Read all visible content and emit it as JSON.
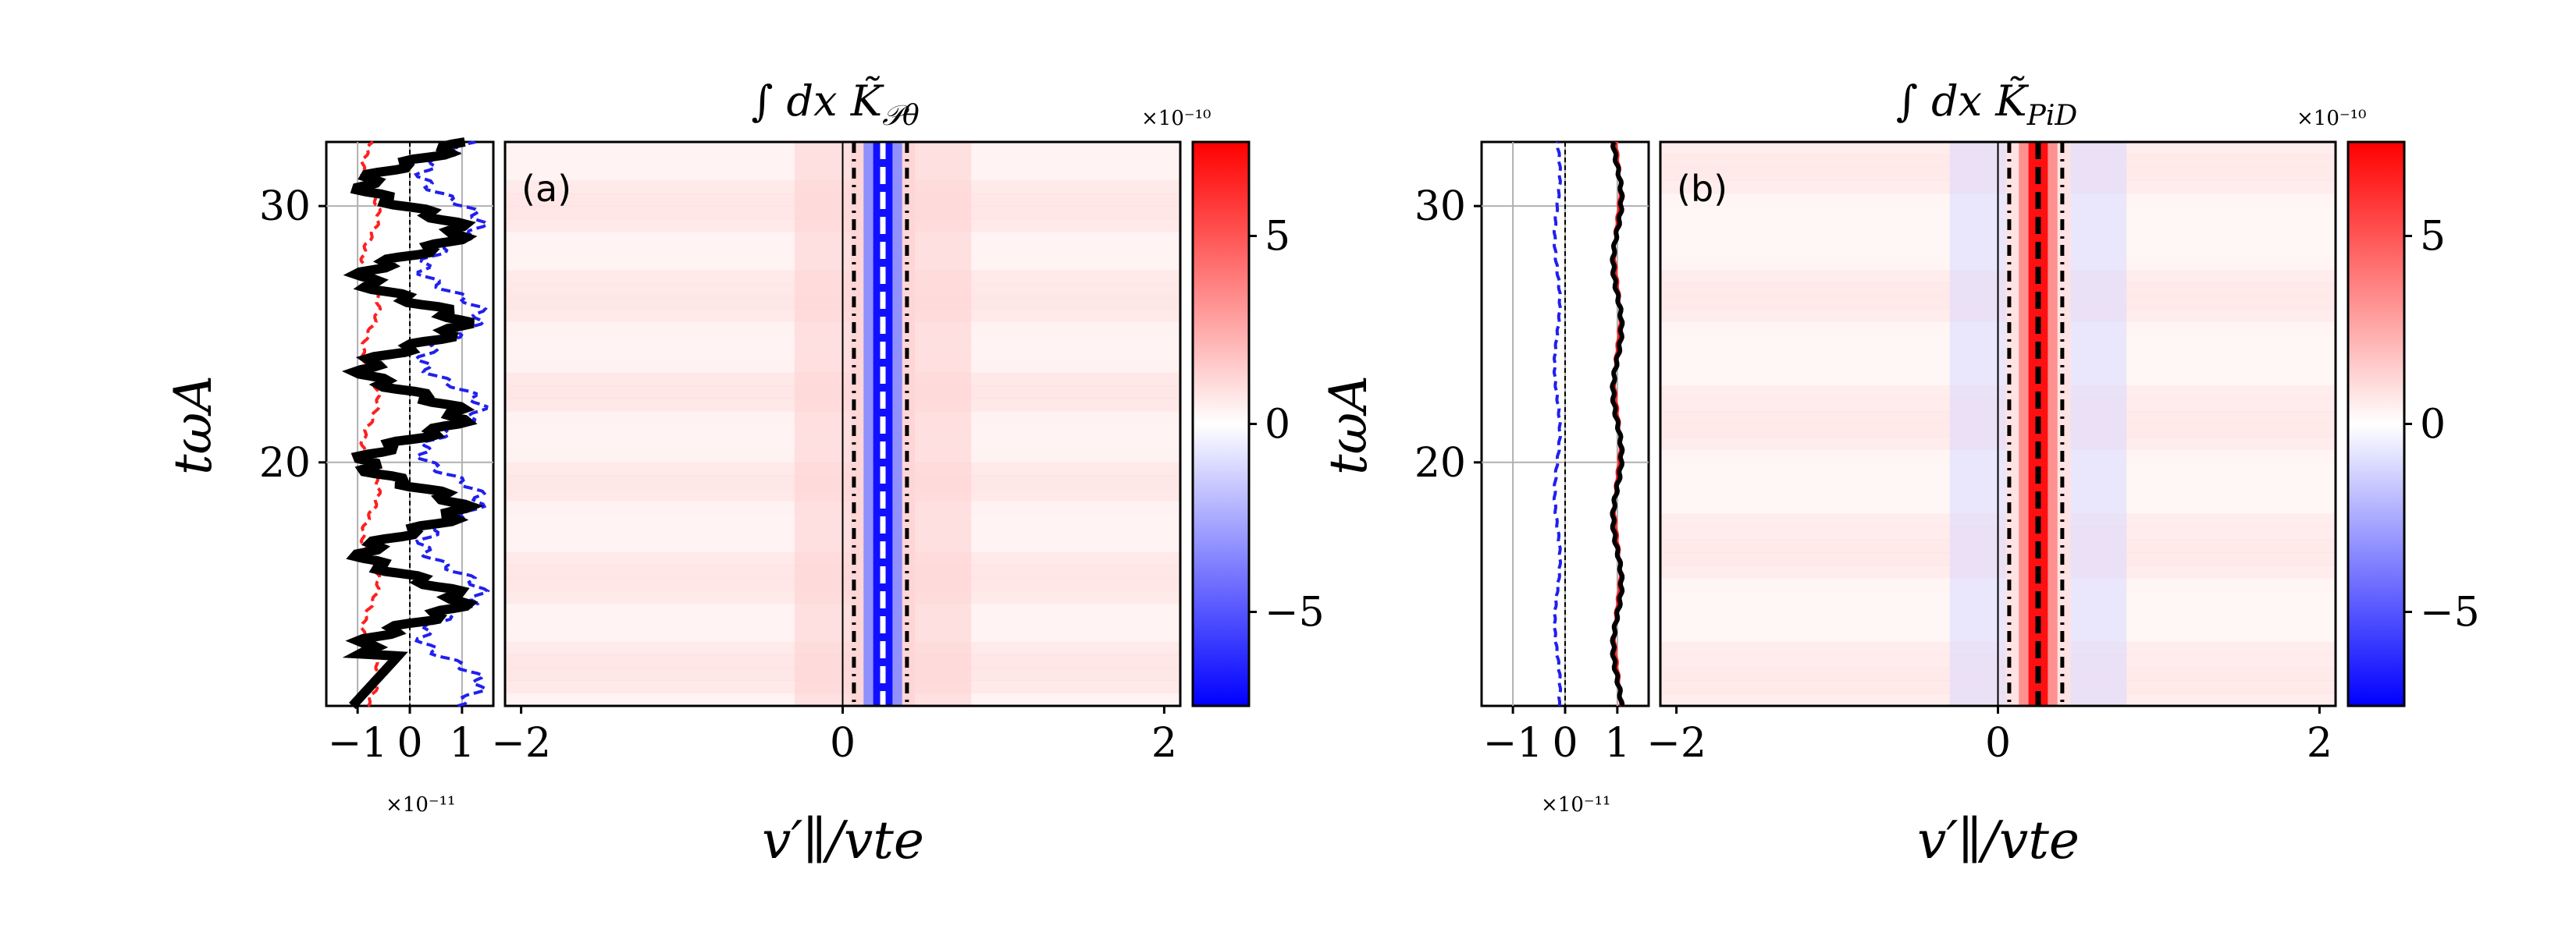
{
  "chart_data": [
    {
      "panel": "a",
      "type": "heatmap",
      "panel_label": "(a)",
      "title": "∫ dx K̃_Pθ",
      "title_parts": {
        "integral": "∫ dx ",
        "symbol": "K̃",
        "subscript": "𝒫θ"
      },
      "xlabel": "v′∥/vte",
      "ylabel": "tωA",
      "xlim": [
        -2.1,
        2.1
      ],
      "ylim": [
        10.5,
        32.5
      ],
      "xticks": [
        "−2",
        "0",
        "2"
      ],
      "xtick_values": [
        -2,
        0,
        2
      ],
      "yticks": [
        "20",
        "30"
      ],
      "ytick_values": [
        20,
        30
      ],
      "colorbar": {
        "range": [
          -7.5,
          7.5
        ],
        "ticks": [
          "5",
          "0",
          "−5"
        ],
        "tick_values": [
          5,
          0,
          -5
        ],
        "scale_label": "×10⁻¹⁰"
      },
      "dominant_band": {
        "center": 0.25,
        "sign": "negative"
      },
      "vertical_lines": [
        {
          "x": 0.07,
          "style": "dashdot"
        },
        {
          "x": 0.25,
          "style": "dashed"
        },
        {
          "x": 0.4,
          "style": "dashdot"
        }
      ],
      "side_plot": {
        "xlim": [
          -1.6,
          1.6
        ],
        "xticks": [
          "−1",
          "0",
          "1"
        ],
        "xtick_values": [
          -1,
          0,
          1
        ],
        "scale_label": "×10⁻¹¹",
        "series": [
          {
            "name": "red",
            "color": "#ff2020",
            "style": "dashed",
            "mean": -0.75,
            "amp": 0.15,
            "period": 3.6
          },
          {
            "name": "blue",
            "color": "#2020ee",
            "style": "dashed",
            "mean": 0.8,
            "amp": 0.55,
            "period": 3.6
          },
          {
            "name": "black",
            "color": "#000000",
            "style": "solid",
            "mean": 0.05,
            "amp": 0.9,
            "period": 3.6
          }
        ]
      }
    },
    {
      "panel": "b",
      "type": "heatmap",
      "panel_label": "(b)",
      "title": "∫ dx K̃_PiD",
      "title_parts": {
        "integral": "∫ dx ",
        "symbol": "K̃",
        "subscript": "PiD"
      },
      "xlabel": "v′∥/vte",
      "ylabel": "tωA",
      "xlim": [
        -2.1,
        2.1
      ],
      "ylim": [
        10.5,
        32.5
      ],
      "xticks": [
        "−2",
        "0",
        "2"
      ],
      "xtick_values": [
        -2,
        0,
        2
      ],
      "yticks": [
        "20",
        "30"
      ],
      "ytick_values": [
        20,
        30
      ],
      "colorbar": {
        "range": [
          -7.5,
          7.5
        ],
        "ticks": [
          "5",
          "0",
          "−5"
        ],
        "tick_values": [
          5,
          0,
          -5
        ],
        "scale_label": "×10⁻¹⁰"
      },
      "dominant_band": {
        "center": 0.25,
        "sign": "positive"
      },
      "vertical_lines": [
        {
          "x": 0.07,
          "style": "dashdot"
        },
        {
          "x": 0.25,
          "style": "dashed"
        },
        {
          "x": 0.4,
          "style": "dashdot"
        }
      ],
      "side_plot": {
        "xlim": [
          -1.6,
          1.6
        ],
        "xticks": [
          "−1",
          "0",
          "1"
        ],
        "xtick_values": [
          -1,
          0,
          1
        ],
        "scale_label": "×10⁻¹¹",
        "series": [
          {
            "name": "blue",
            "color": "#2020ee",
            "style": "dashed",
            "mean": -0.15,
            "amp": 0.05,
            "period": 5.0
          },
          {
            "name": "red",
            "color": "#ff2020",
            "style": "solid",
            "mean": 1.0,
            "amp": 0.05,
            "period": 5.0
          },
          {
            "name": "black",
            "color": "#000000",
            "style": "solid",
            "mean": 1.0,
            "amp": 0.08,
            "period": 5.0
          }
        ]
      }
    }
  ]
}
